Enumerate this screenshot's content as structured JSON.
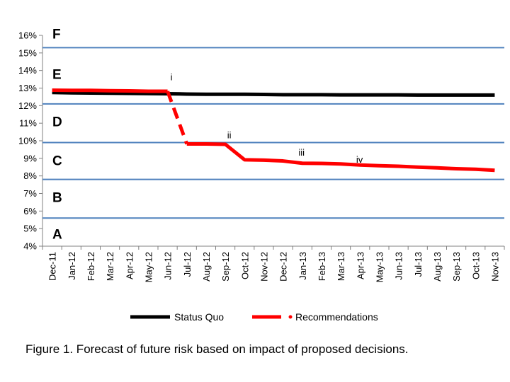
{
  "caption": "Figure 1. Forecast of future risk based on impact of proposed decisions.",
  "colors": {
    "status_quo": "#000000",
    "recommendations": "#ff0000",
    "band_lines": "#4f81bd",
    "axis": "#808080"
  },
  "chart_data": {
    "type": "line",
    "categories": [
      "Dec-11",
      "Jan-12",
      "Feb-12",
      "Mar-12",
      "Apr-12",
      "May-12",
      "Jun-12",
      "Jul-12",
      "Aug-12",
      "Sep-12",
      "Oct-12",
      "Nov-12",
      "Dec-12",
      "Jan-13",
      "Feb-13",
      "Mar-13",
      "Apr-13",
      "May-13",
      "Jun-13",
      "Jul-13",
      "Aug-13",
      "Sep-13",
      "Oct-13",
      "Nov-13"
    ],
    "ylim": [
      4,
      16
    ],
    "yticks": [
      4,
      5,
      6,
      7,
      8,
      9,
      10,
      11,
      12,
      13,
      14,
      15,
      16
    ],
    "ytick_labels": [
      "4%",
      "5%",
      "6%",
      "7%",
      "8%",
      "9%",
      "10%",
      "11%",
      "12%",
      "13%",
      "14%",
      "15%",
      "16%"
    ],
    "series": [
      {
        "name": "Status Quo",
        "values": [
          12.75,
          12.73,
          12.72,
          12.71,
          12.7,
          12.69,
          12.68,
          12.66,
          12.65,
          12.65,
          12.65,
          12.64,
          12.62,
          12.62,
          12.62,
          12.61,
          12.61,
          12.61,
          12.61,
          12.6,
          12.6,
          12.6,
          12.6,
          12.6
        ]
      },
      {
        "name": "Recommendations",
        "values": [
          12.88,
          12.87,
          12.87,
          12.85,
          12.84,
          12.82,
          12.82,
          9.82,
          9.82,
          9.8,
          8.92,
          8.9,
          8.85,
          8.72,
          8.71,
          8.68,
          8.62,
          8.58,
          8.55,
          8.5,
          8.46,
          8.41,
          8.38,
          8.32
        ]
      }
    ],
    "band_thresholds": [
      5.6,
      7.8,
      9.9,
      12.1,
      15.3
    ],
    "bands": [
      {
        "label": "A",
        "y": 4.7
      },
      {
        "label": "B",
        "y": 6.8
      },
      {
        "label": "C",
        "y": 8.9
      },
      {
        "label": "D",
        "y": 11.1
      },
      {
        "label": "E",
        "y": 13.8
      },
      {
        "label": "F",
        "y": 16.1
      }
    ],
    "annotations": [
      {
        "text": "i",
        "x_index": 6.15,
        "y": 13.45
      },
      {
        "text": "ii",
        "x_index": 9.1,
        "y": 10.15
      },
      {
        "text": "iii",
        "x_index": 12.8,
        "y": 9.15
      },
      {
        "text": "iv",
        "x_index": 15.8,
        "y": 8.75
      }
    ],
    "legend": "bottom-center"
  }
}
